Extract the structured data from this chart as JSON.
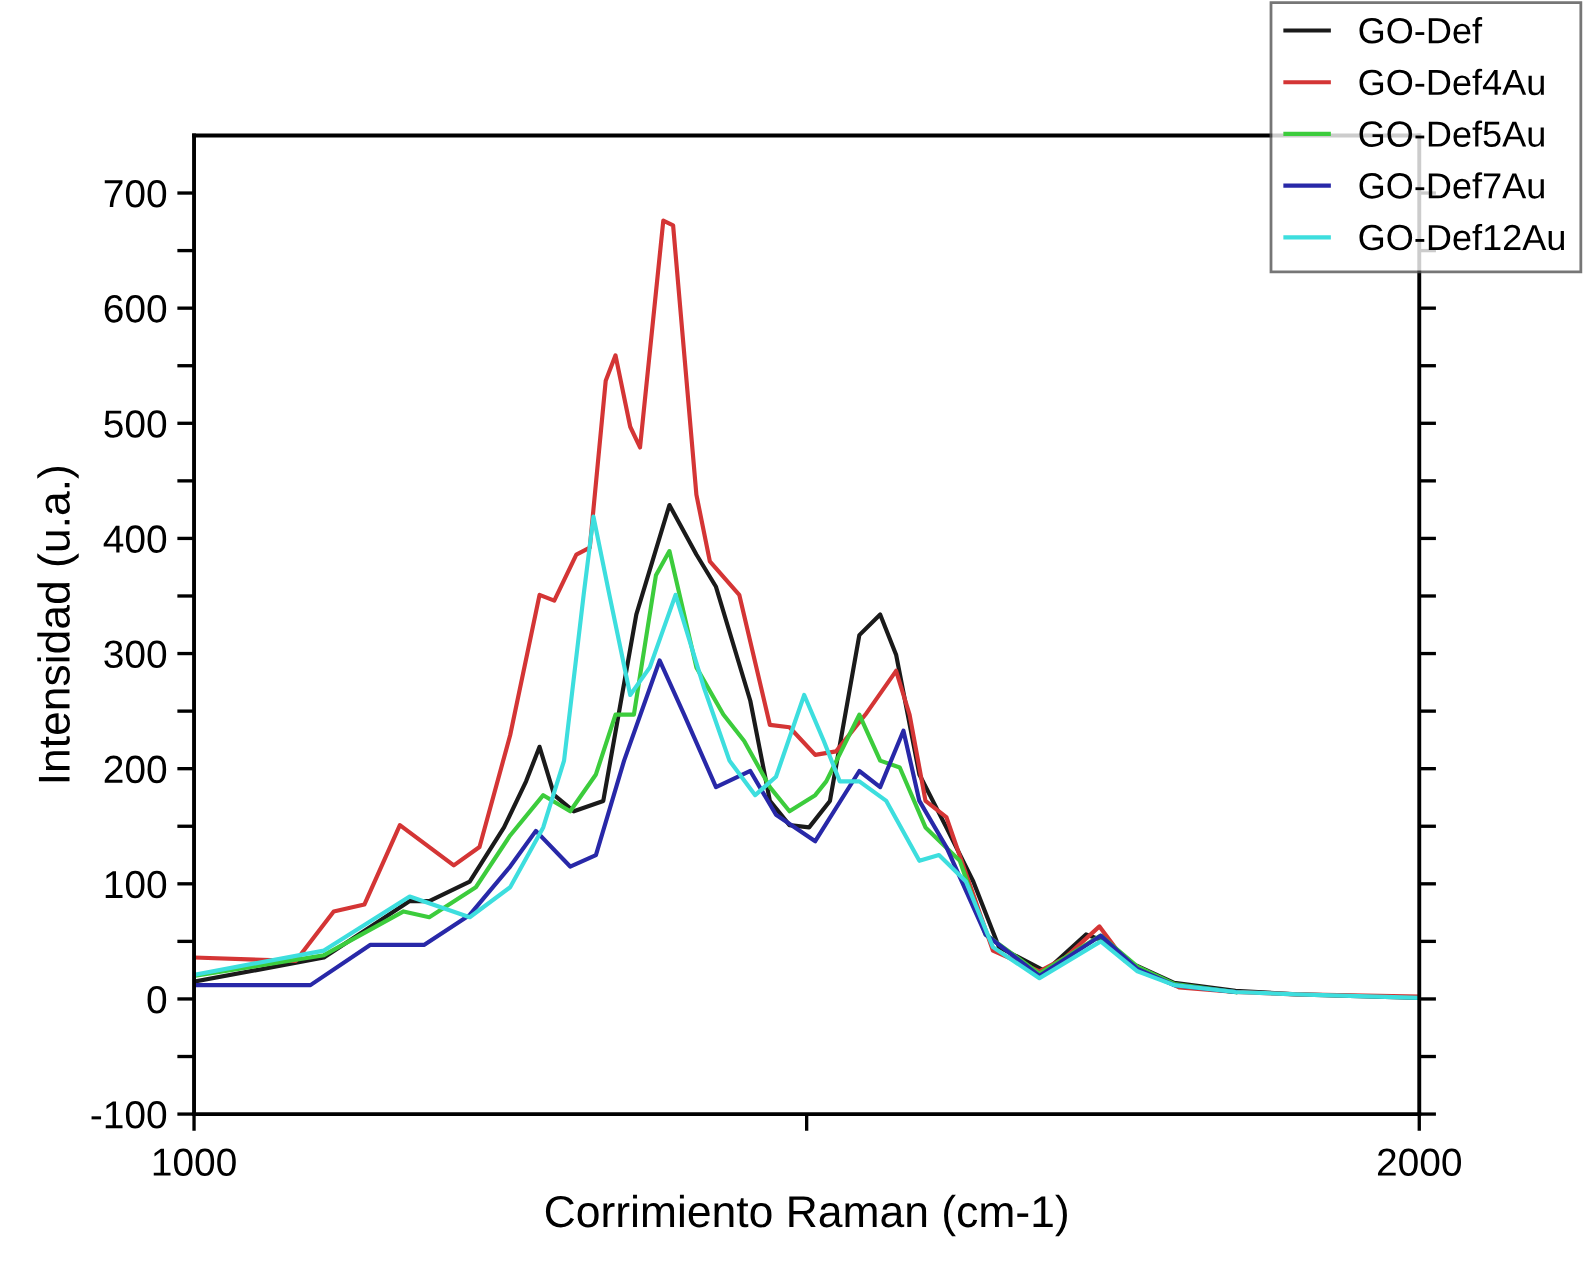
{
  "chart_data": {
    "type": "line",
    "xlabel": "Corrimiento Raman (cm-1)",
    "ylabel": "Intensidad (u.a.)",
    "xlim": [
      1000,
      2000
    ],
    "ylim": [
      -100,
      750
    ],
    "xticks": [
      1000,
      {
        "value": 1500,
        "label": null
      },
      2000
    ],
    "yticks": [
      -100,
      {
        "value": -50,
        "label": null
      },
      0,
      {
        "value": 50,
        "label": null
      },
      100,
      {
        "value": 150,
        "label": null
      },
      200,
      {
        "value": 250,
        "label": null
      },
      300,
      {
        "value": 350,
        "label": null
      },
      400,
      {
        "value": 450,
        "label": null
      },
      500,
      {
        "value": 550,
        "label": null
      },
      600,
      {
        "value": 650,
        "label": null
      },
      700
    ],
    "grid": false,
    "legend": "top right",
    "marker": "none",
    "line_style": "solid",
    "series": [
      {
        "name": "GO-Def",
        "color": "#1a1a1a",
        "x": [
          1000,
          1106,
          1176,
          1192,
          1225,
          1253,
          1271,
          1282,
          1294,
          1310,
          1334,
          1361,
          1388,
          1410,
          1426,
          1454,
          1470,
          1486,
          1502,
          1519,
          1543,
          1560,
          1573,
          1592,
          1614,
          1636,
          1657,
          1695,
          1728,
          1744,
          1767,
          1800,
          1850,
          1900,
          2000
        ],
        "values": [
          15,
          36,
          85,
          85,
          102,
          149,
          189,
          219,
          177,
          163,
          172,
          334,
          429,
          386,
          358,
          259,
          172,
          151,
          149,
          172,
          316,
          334,
          299,
          195,
          149,
          102,
          45,
          24,
          56,
          50,
          30,
          14,
          7,
          4,
          1
        ]
      },
      {
        "name": "GO-Def4Au",
        "color": "#d43535",
        "x": [
          1000,
          1083,
          1114,
          1139,
          1168,
          1212,
          1233,
          1258,
          1282,
          1294,
          1312,
          1323,
          1336,
          1344,
          1356,
          1364,
          1383,
          1391,
          1410,
          1421,
          1445,
          1470,
          1486,
          1507,
          1524,
          1548,
          1573,
          1584,
          1597,
          1614,
          1628,
          1652,
          1690,
          1711,
          1739,
          1760,
          1804,
          1850,
          1900,
          2000
        ],
        "values": [
          36,
          33,
          76,
          82,
          151,
          116,
          132,
          229,
          351,
          346,
          386,
          392,
          537,
          559,
          497,
          479,
          676,
          672,
          438,
          380,
          351,
          238,
          236,
          212,
          215,
          247,
          285,
          247,
          172,
          158,
          115,
          42,
          24,
          36,
          63,
          33,
          10,
          6,
          4,
          2
        ]
      },
      {
        "name": "GO-Def5Au",
        "color": "#3ccc3c",
        "x": [
          1000,
          1106,
          1171,
          1192,
          1230,
          1258,
          1285,
          1307,
          1328,
          1344,
          1359,
          1377,
          1388,
          1410,
          1432,
          1449,
          1470,
          1486,
          1507,
          1516,
          1543,
          1560,
          1576,
          1597,
          1625,
          1646,
          1690,
          1740,
          1770,
          1800,
          1850
        ],
        "values": [
          20,
          38,
          76,
          71,
          97,
          142,
          177,
          163,
          195,
          247,
          247,
          368,
          389,
          288,
          247,
          224,
          184,
          163,
          177,
          189,
          247,
          207,
          201,
          149,
          120,
          56,
          22,
          55,
          28,
          13,
          6
        ]
      },
      {
        "name": "GO-Def7Au",
        "color": "#2828a8",
        "x": [
          1000,
          1095,
          1144,
          1188,
          1225,
          1258,
          1279,
          1307,
          1328,
          1351,
          1380,
          1400,
          1426,
          1454,
          1475,
          1507,
          1543,
          1560,
          1579,
          1592,
          1614,
          1646,
          1690,
          1740,
          1770,
          1800,
          1850
        ],
        "values": [
          12,
          12,
          47,
          47,
          73,
          115,
          146,
          115,
          125,
          207,
          294,
          247,
          184,
          198,
          160,
          137,
          198,
          184,
          233,
          172,
          132,
          56,
          20,
          55,
          26,
          12,
          6
        ]
      },
      {
        "name": "GO-Def12Au",
        "color": "#3ddede",
        "x": [
          1000,
          1106,
          1176,
          1225,
          1258,
          1285,
          1302,
          1318,
          1326,
          1339,
          1356,
          1372,
          1393,
          1416,
          1437,
          1458,
          1475,
          1498,
          1514,
          1527,
          1543,
          1565,
          1592,
          1608,
          1630,
          1652,
          1690,
          1740,
          1770,
          1800,
          1850,
          1900,
          2000
        ],
        "values": [
          21,
          42,
          89,
          71,
          97,
          149,
          207,
          351,
          419,
          351,
          264,
          288,
          351,
          271,
          207,
          177,
          193,
          264,
          224,
          189,
          189,
          172,
          120,
          125,
          102,
          45,
          18,
          50,
          24,
          12,
          6,
          4,
          1
        ]
      }
    ]
  }
}
